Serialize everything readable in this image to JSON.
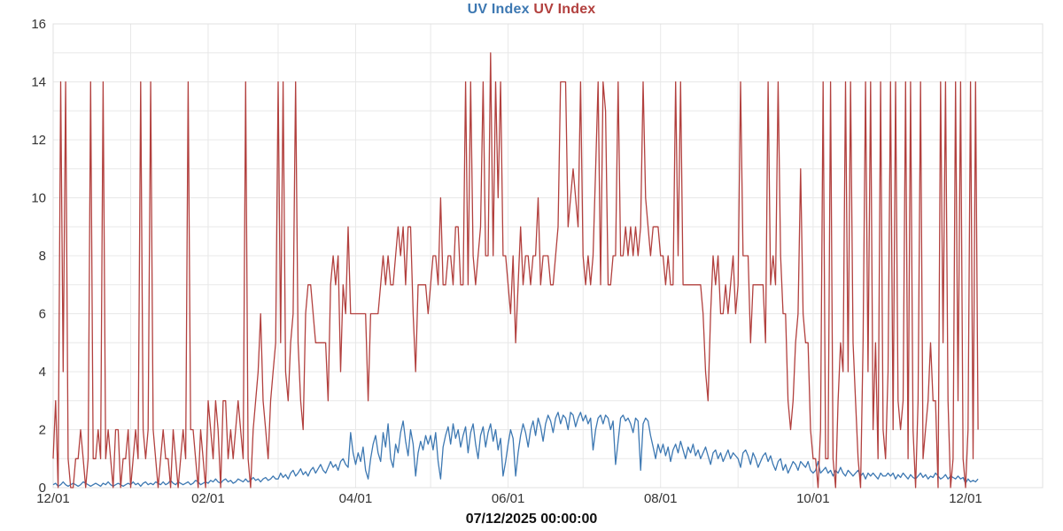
{
  "legend": {
    "items": [
      {
        "label": "UV Index",
        "color": "#3d78b2"
      },
      {
        "label": "UV Index",
        "color": "#b2403e"
      }
    ]
  },
  "colors": {
    "series_blue": "#3d78b2",
    "series_red": "#b2403e",
    "gridline": "#e8e8e8",
    "plot_border": "#e0e0e0",
    "tick_text": "#333333",
    "axis_title_text": "#111111",
    "background": "#ffffff"
  },
  "chart_data": {
    "type": "line",
    "title": "UV Index UV Index",
    "xlabel": "07/12/2025 00:00:00",
    "ylabel": "",
    "ylim": [
      0,
      16
    ],
    "y_ticks": [
      0,
      2,
      4,
      6,
      8,
      10,
      12,
      14,
      16
    ],
    "y_minor_gridline_step": 1,
    "grid": true,
    "legend_position": "top-center",
    "x_ticks": [
      {
        "day": 0,
        "label": "12/01"
      },
      {
        "day": 62,
        "label": "02/01"
      },
      {
        "day": 121,
        "label": "04/01"
      },
      {
        "day": 182,
        "label": "06/01"
      },
      {
        "day": 243,
        "label": "08/01"
      },
      {
        "day": 304,
        "label": "10/01"
      },
      {
        "day": 365,
        "label": "12/01"
      }
    ],
    "month_gridline_days": [
      0,
      31,
      62,
      90,
      121,
      151,
      182,
      212,
      243,
      274,
      304,
      335,
      365
    ],
    "x_unit": "day index from first 12/01",
    "series": [
      {
        "name": "UV Index",
        "color": "#3d78b2",
        "values": [
          0.1,
          0.15,
          0.05,
          0.1,
          0.2,
          0.1,
          0.05,
          0.1,
          0.15,
          0.1,
          0.05,
          0.1,
          0.2,
          0.15,
          0.1,
          0.05,
          0.1,
          0.15,
          0.1,
          0.05,
          0.15,
          0.1,
          0.2,
          0.1,
          0.05,
          0.1,
          0.15,
          0.1,
          0.05,
          0.1,
          0.15,
          0.1,
          0.2,
          0.1,
          0.15,
          0.05,
          0.15,
          0.2,
          0.1,
          0.15,
          0.1,
          0.2,
          0.15,
          0.1,
          0.2,
          0.1,
          0.15,
          0.25,
          0.15,
          0.1,
          0.2,
          0.15,
          0.1,
          0.15,
          0.2,
          0.1,
          0.15,
          0.25,
          0.2,
          0.1,
          0.15,
          0.2,
          0.15,
          0.25,
          0.2,
          0.3,
          0.2,
          0.15,
          0.25,
          0.3,
          0.2,
          0.25,
          0.15,
          0.2,
          0.3,
          0.25,
          0.2,
          0.3,
          0.2,
          0.25,
          0.35,
          0.25,
          0.3,
          0.2,
          0.3,
          0.35,
          0.25,
          0.3,
          0.4,
          0.3,
          0.3,
          0.5,
          0.35,
          0.45,
          0.3,
          0.5,
          0.6,
          0.4,
          0.5,
          0.65,
          0.45,
          0.55,
          0.4,
          0.6,
          0.7,
          0.5,
          0.65,
          0.8,
          0.6,
          0.5,
          0.7,
          0.9,
          0.7,
          0.8,
          0.6,
          0.9,
          1.0,
          0.8,
          0.7,
          1.9,
          1.2,
          0.8,
          1.2,
          0.9,
          1.4,
          0.6,
          0.3,
          1.0,
          1.5,
          1.8,
          1.2,
          0.9,
          1.9,
          1.4,
          2.2,
          1.0,
          0.7,
          1.5,
          1.2,
          1.9,
          2.3,
          1.6,
          1.1,
          2.0,
          1.5,
          0.4,
          1.2,
          1.6,
          1.3,
          1.8,
          1.5,
          1.8,
          1.3,
          1.9,
          0.9,
          0.3,
          1.4,
          1.8,
          2.1,
          1.5,
          2.2,
          1.7,
          2.0,
          1.4,
          1.8,
          2.1,
          1.2,
          1.9,
          2.2,
          1.5,
          1.0,
          1.8,
          2.1,
          1.4,
          1.9,
          2.2,
          1.6,
          2.0,
          1.3,
          1.7,
          0.4,
          0.9,
          1.5,
          2.0,
          1.7,
          0.4,
          1.2,
          1.8,
          2.2,
          1.9,
          1.4,
          2.0,
          2.3,
          1.8,
          2.4,
          2.1,
          1.6,
          2.2,
          2.5,
          2.3,
          1.9,
          2.4,
          2.6,
          2.2,
          2.5,
          2.4,
          2.0,
          2.6,
          2.5,
          2.1,
          2.4,
          2.6,
          2.3,
          2.5,
          2.2,
          2.4,
          1.3,
          2.0,
          2.4,
          2.5,
          2.2,
          2.5,
          2.4,
          2.0,
          2.3,
          0.8,
          1.6,
          2.4,
          2.5,
          2.3,
          2.4,
          2.2,
          1.9,
          2.4,
          2.3,
          0.6,
          2.2,
          2.4,
          2.3,
          1.8,
          1.4,
          1.0,
          1.5,
          1.2,
          1.5,
          1.1,
          1.4,
          0.9,
          1.3,
          1.5,
          1.2,
          1.6,
          1.3,
          1.0,
          1.4,
          1.2,
          1.5,
          1.1,
          1.3,
          1.0,
          1.2,
          1.4,
          1.1,
          0.8,
          1.2,
          1.3,
          1.0,
          1.2,
          0.9,
          1.1,
          1.3,
          1.0,
          1.2,
          1.1,
          1.0,
          0.7,
          1.2,
          1.3,
          1.1,
          0.8,
          1.2,
          1.0,
          0.7,
          0.9,
          1.1,
          1.2,
          0.9,
          1.1,
          0.8,
          0.6,
          0.9,
          1.0,
          0.6,
          0.8,
          0.5,
          0.7,
          0.9,
          0.8,
          0.6,
          0.9,
          0.8,
          0.7,
          0.9,
          0.6,
          0.5,
          0.6,
          0.9,
          0.5,
          0.6,
          0.7,
          0.5,
          0.6,
          0.4,
          0.6,
          0.5,
          0.7,
          0.5,
          0.4,
          0.6,
          0.5,
          0.4,
          0.5,
          0.6,
          0.4,
          0.5,
          0.3,
          0.5,
          0.4,
          0.5,
          0.4,
          0.3,
          0.5,
          0.4,
          0.4,
          0.5,
          0.4,
          0.5,
          0.3,
          0.45,
          0.35,
          0.5,
          0.4,
          0.3,
          0.45,
          0.35,
          0.3,
          0.4,
          0.5,
          0.35,
          0.45,
          0.3,
          0.4,
          0.35,
          0.5,
          0.4,
          0.3,
          0.35,
          0.45,
          0.3,
          0.4,
          0.35,
          0.3,
          0.4,
          0.3,
          0.35,
          0.15,
          0.3,
          0.2,
          0.25,
          0.2,
          0.3
        ]
      },
      {
        "name": "UV Index",
        "color": "#b2403e",
        "values": [
          1,
          3,
          0,
          14,
          4,
          14,
          1,
          0,
          0,
          1,
          1,
          2,
          1,
          0,
          1,
          14,
          1,
          1,
          2,
          1,
          14,
          1,
          2,
          1,
          0,
          2,
          2,
          0,
          1,
          1,
          2,
          0,
          1,
          2,
          1,
          14,
          2,
          1,
          2,
          14,
          2,
          1,
          0,
          1,
          2,
          1,
          1,
          0,
          2,
          1,
          0,
          1,
          2,
          1,
          14,
          2,
          2,
          1,
          0,
          2,
          1,
          0,
          3,
          2,
          1,
          3,
          2,
          0,
          3,
          3,
          1,
          2,
          1,
          2,
          3,
          2,
          1,
          14,
          1,
          0,
          2,
          3,
          4,
          6,
          3,
          2,
          1,
          3,
          4,
          5,
          14,
          5,
          14,
          4,
          3,
          5,
          6,
          14,
          5,
          3,
          2,
          6,
          7,
          7,
          6,
          5,
          5,
          5,
          5,
          5,
          3,
          7,
          8,
          7,
          8,
          4,
          7,
          6,
          9,
          6,
          6,
          6,
          6,
          6,
          6,
          6,
          3,
          6,
          6,
          6,
          6,
          7,
          8,
          7,
          8,
          7,
          7,
          8,
          9,
          8,
          9,
          7,
          9,
          9,
          6,
          4,
          7,
          7,
          7,
          7,
          6,
          7,
          8,
          8,
          7,
          10,
          7,
          7,
          8,
          8,
          7,
          9,
          9,
          7,
          7,
          14,
          7,
          14,
          8,
          7,
          8,
          9,
          14,
          8,
          8,
          15,
          8,
          14,
          10,
          14,
          8,
          8,
          7,
          6,
          8,
          5,
          7,
          9,
          7,
          8,
          8,
          7,
          8,
          8,
          10,
          7,
          8,
          8,
          8,
          7,
          7,
          8,
          9,
          14,
          14,
          14,
          9,
          10,
          11,
          10,
          9,
          14,
          8,
          7,
          8,
          7,
          8,
          11,
          14,
          7,
          14,
          13,
          7,
          7,
          8,
          8,
          14,
          8,
          8,
          9,
          8,
          9,
          8,
          9,
          8,
          9,
          14,
          10,
          9,
          8,
          9,
          9,
          9,
          8,
          8,
          7,
          8,
          7,
          7,
          14,
          8,
          14,
          7,
          7,
          7,
          7,
          7,
          7,
          7,
          7,
          6,
          4,
          3,
          6,
          8,
          7,
          8,
          6,
          6,
          7,
          6,
          7,
          8,
          6,
          7,
          14,
          8,
          8,
          8,
          5,
          7,
          7,
          7,
          7,
          7,
          5,
          14,
          7,
          8,
          7,
          14,
          8,
          6,
          6,
          3,
          2,
          3,
          5,
          6,
          11,
          6,
          5,
          5,
          2,
          1,
          1,
          0,
          2,
          14,
          1,
          1,
          14,
          1,
          0,
          3,
          5,
          4,
          14,
          4,
          14,
          5,
          3,
          1,
          0,
          5,
          14,
          4,
          14,
          2,
          5,
          1,
          14,
          2,
          1,
          4,
          14,
          2,
          14,
          3,
          2,
          3,
          14,
          1,
          14,
          2,
          0,
          3,
          14,
          1,
          2,
          3,
          5,
          3,
          3,
          0,
          14,
          5,
          14,
          3,
          0,
          1,
          14,
          3,
          14,
          1,
          0,
          2,
          14,
          1,
          14,
          2
        ]
      }
    ]
  }
}
